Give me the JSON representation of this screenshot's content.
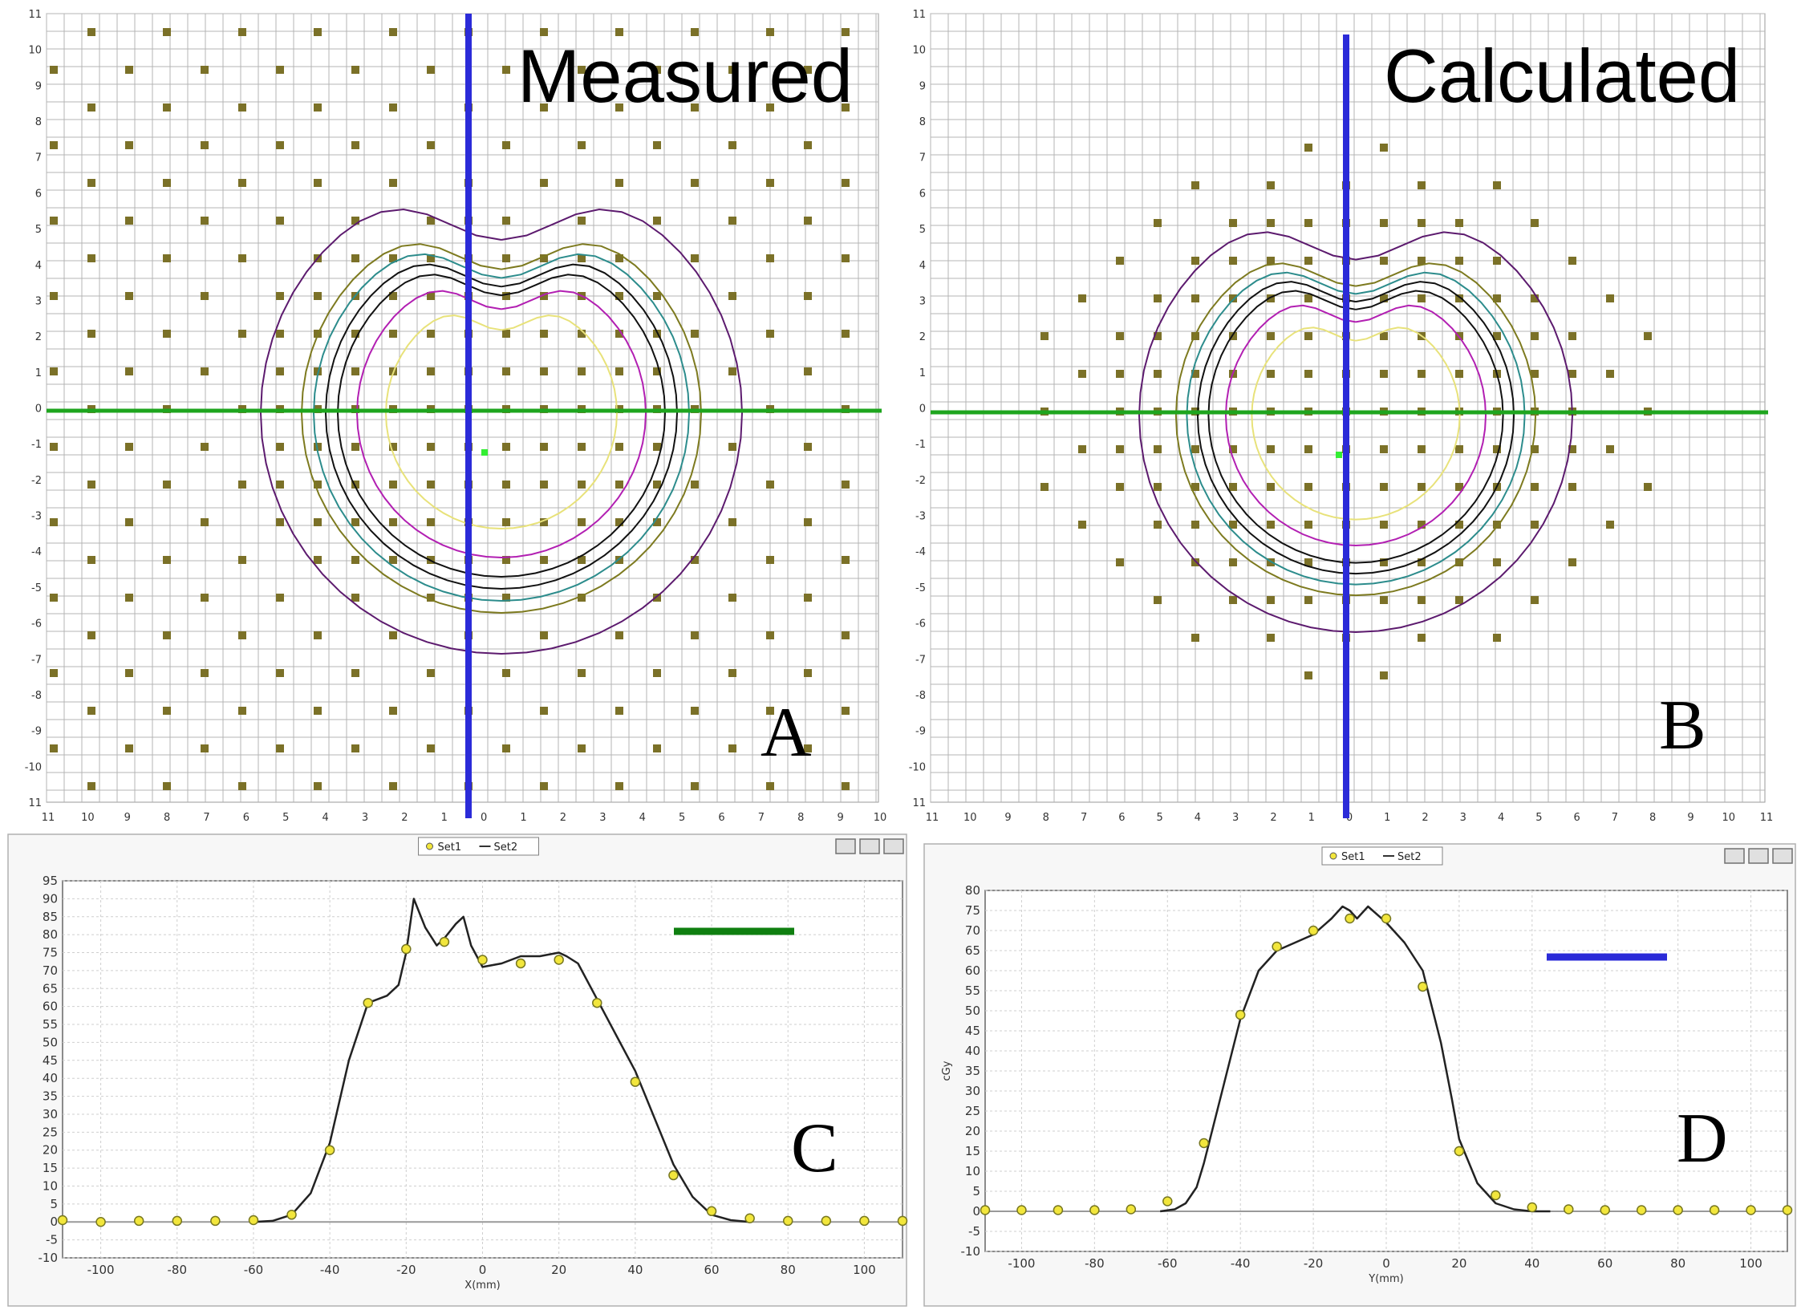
{
  "chart_data": [
    {
      "type": "heatmap",
      "panel": "A",
      "title": "Measured",
      "x_ticks": [
        "11",
        "10",
        "9",
        "8",
        "7",
        "6",
        "5",
        "4",
        "3",
        "2",
        "1",
        "0",
        "1",
        "2",
        "3",
        "4",
        "5",
        "6",
        "7",
        "8",
        "9",
        "10"
      ],
      "y_ticks": [
        "11",
        "10",
        "9",
        "8",
        "7",
        "6",
        "5",
        "4",
        "3",
        "2",
        "1",
        "0",
        "-1",
        "-2",
        "-3",
        "-4",
        "-5",
        "-6",
        "-7",
        "-8",
        "-9",
        "-10",
        "11"
      ],
      "crosshair": {
        "vertical_color": "#2b2bd8",
        "horizontal_color": "#1ea51e"
      }
    },
    {
      "type": "heatmap",
      "panel": "B",
      "title": "Calculated",
      "x_ticks": [
        "11",
        "10",
        "9",
        "8",
        "7",
        "6",
        "5",
        "4",
        "3",
        "2",
        "1",
        "0",
        "1",
        "2",
        "3",
        "4",
        "5",
        "6",
        "7",
        "8",
        "9",
        "10",
        "11"
      ],
      "y_ticks": [
        "11",
        "10",
        "9",
        "8",
        "7",
        "6",
        "5",
        "4",
        "3",
        "2",
        "1",
        "0",
        "-1",
        "-2",
        "-3",
        "-4",
        "-5",
        "-6",
        "-7",
        "-8",
        "-9",
        "-10",
        "11"
      ],
      "crosshair": {
        "vertical_color": "#2b2bd8",
        "horizontal_color": "#1ea51e"
      }
    },
    {
      "type": "line",
      "panel": "C",
      "xlabel": "X(mm)",
      "ylabel": "",
      "xlim": [
        -110,
        110
      ],
      "ylim": [
        -10,
        95
      ],
      "x_ticks": [
        -100,
        -80,
        -60,
        -40,
        -20,
        0,
        20,
        40,
        60,
        80,
        100
      ],
      "y_ticks": [
        -10,
        -5,
        0,
        5,
        10,
        15,
        20,
        25,
        30,
        35,
        40,
        45,
        50,
        55,
        60,
        65,
        70,
        75,
        80,
        85,
        90,
        95
      ],
      "legend": [
        "Set1",
        "Set2"
      ],
      "profile_marker_color": "#0f7f10",
      "series": [
        {
          "name": "Set1",
          "x": [
            -110,
            -100,
            -90,
            -80,
            -70,
            -60,
            -50,
            -40,
            -30,
            -20,
            -10,
            0,
            10,
            20,
            30,
            40,
            50,
            60,
            70,
            80,
            90,
            100,
            110
          ],
          "y": [
            0.5,
            0,
            0.3,
            0.3,
            0.3,
            0.5,
            2,
            20,
            61,
            76,
            78,
            73,
            72,
            73,
            61,
            39,
            13,
            3,
            1,
            0.3,
            0.3,
            0.3,
            0.3
          ]
        },
        {
          "name": "Set2",
          "x": [
            -60,
            -55,
            -50,
            -45,
            -40,
            -35,
            -30,
            -25,
            -22,
            -20,
            -18,
            -15,
            -12,
            -10,
            -7,
            -5,
            -3,
            0,
            5,
            10,
            15,
            20,
            22,
            25,
            30,
            35,
            40,
            45,
            50,
            55,
            60,
            65,
            70
          ],
          "y": [
            0,
            0.3,
            2,
            8,
            22,
            45,
            61,
            63,
            66,
            75,
            90,
            82,
            77,
            79,
            83,
            85,
            77,
            71,
            72,
            74,
            74,
            75,
            74,
            72,
            62,
            52,
            42,
            29,
            16,
            7,
            2,
            0.5,
            0
          ]
        }
      ]
    },
    {
      "type": "line",
      "panel": "D",
      "xlabel": "Y(mm)",
      "ylabel": "cGy",
      "xlim": [
        -110,
        110
      ],
      "ylim": [
        -10,
        80
      ],
      "x_ticks": [
        -100,
        -80,
        -60,
        -40,
        -20,
        0,
        20,
        40,
        60,
        80,
        100
      ],
      "y_ticks": [
        -10,
        -5,
        0,
        5,
        10,
        15,
        20,
        25,
        30,
        35,
        40,
        45,
        50,
        55,
        60,
        65,
        70,
        75,
        80
      ],
      "legend": [
        "Set1",
        "Set2"
      ],
      "profile_marker_color": "#2b2bd8",
      "series": [
        {
          "name": "Set1",
          "x": [
            -110,
            -100,
            -90,
            -80,
            -70,
            -60,
            -50,
            -40,
            -30,
            -20,
            -10,
            0,
            10,
            20,
            30,
            40,
            50,
            60,
            70,
            80,
            90,
            100,
            110
          ],
          "y": [
            0.3,
            0.3,
            0.3,
            0.3,
            0.5,
            2.5,
            17,
            49,
            66,
            70,
            73,
            73,
            56,
            15,
            4,
            1,
            0.5,
            0.3,
            0.3,
            0.3,
            0.3,
            0.3,
            0.3
          ]
        },
        {
          "name": "Set2",
          "x": [
            -62,
            -58,
            -55,
            -52,
            -50,
            -45,
            -40,
            -35,
            -30,
            -25,
            -20,
            -15,
            -12,
            -10,
            -8,
            -5,
            0,
            5,
            10,
            15,
            18,
            20,
            25,
            30,
            35,
            40,
            45
          ],
          "y": [
            0,
            0.5,
            2,
            6,
            12,
            30,
            48,
            60,
            65,
            67,
            69,
            73,
            76,
            75,
            73,
            76,
            72,
            67,
            60,
            42,
            28,
            18,
            7,
            2,
            0.5,
            0,
            0
          ]
        }
      ]
    }
  ]
}
